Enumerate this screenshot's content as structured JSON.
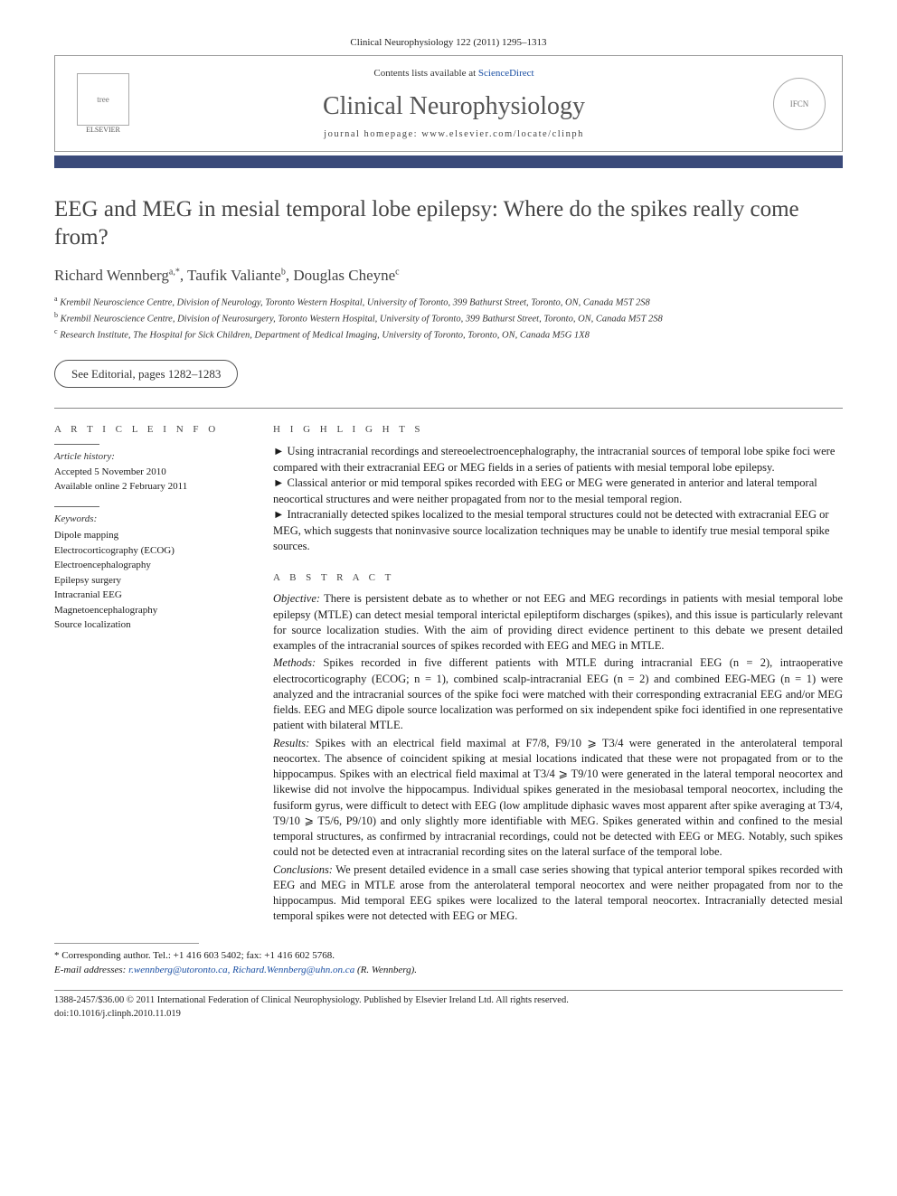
{
  "citation": "Clinical Neurophysiology 122 (2011) 1295–1313",
  "header": {
    "contents_prefix": "Contents lists available at ",
    "contents_link": "ScienceDirect",
    "journal_name": "Clinical Neurophysiology",
    "homepage_prefix": "journal homepage: ",
    "homepage_url": "www.elsevier.com/locate/clinph",
    "publisher_label": "ELSEVIER",
    "publisher_logo_alt": "tree",
    "ifcn_logo_alt": "IFCN"
  },
  "title": "EEG and MEG in mesial temporal lobe epilepsy: Where do the spikes really come from?",
  "authors_html": "Richard Wennberg",
  "authors": [
    {
      "name": "Richard Wennberg",
      "sup": "a,*"
    },
    {
      "name": "Taufik Valiante",
      "sup": "b"
    },
    {
      "name": "Douglas Cheyne",
      "sup": "c"
    }
  ],
  "affiliations": [
    {
      "sup": "a",
      "text": "Krembil Neuroscience Centre, Division of Neurology, Toronto Western Hospital, University of Toronto, 399 Bathurst Street, Toronto, ON, Canada M5T 2S8"
    },
    {
      "sup": "b",
      "text": "Krembil Neuroscience Centre, Division of Neurosurgery, Toronto Western Hospital, University of Toronto, 399 Bathurst Street, Toronto, ON, Canada M5T 2S8"
    },
    {
      "sup": "c",
      "text": "Research Institute, The Hospital for Sick Children, Department of Medical Imaging, University of Toronto, Toronto, ON, Canada M5G 1X8"
    }
  ],
  "editorial_link": "See Editorial, pages 1282–1283",
  "article_info": {
    "head": "A R T I C L E   I N F O",
    "history_label": "Article history:",
    "accepted": "Accepted 5 November 2010",
    "online": "Available online 2 February 2011",
    "keywords_label": "Keywords:",
    "keywords": [
      "Dipole mapping",
      "Electrocorticography (ECOG)",
      "Electroencephalography",
      "Epilepsy surgery",
      "Intracranial EEG",
      "Magnetoencephalography",
      "Source localization"
    ]
  },
  "highlights": {
    "head": "H I G H L I G H T S",
    "items": [
      "Using intracranial recordings and stereoelectroencephalography, the intracranial sources of temporal lobe spike foci were compared with their extracranial EEG or MEG fields in a series of patients with mesial temporal lobe epilepsy.",
      "Classical anterior or mid temporal spikes recorded with EEG or MEG were generated in anterior and lateral temporal neocortical structures and were neither propagated from nor to the mesial temporal region.",
      "Intracranially detected spikes localized to the mesial temporal structures could not be detected with extracranial EEG or MEG, which suggests that noninvasive source localization techniques may be unable to identify true mesial temporal spike sources."
    ]
  },
  "abstract": {
    "head": "A B S T R A C T",
    "objective_label": "Objective:",
    "objective": "There is persistent debate as to whether or not EEG and MEG recordings in patients with mesial temporal lobe epilepsy (MTLE) can detect mesial temporal interictal epileptiform discharges (spikes), and this issue is particularly relevant for source localization studies. With the aim of providing direct evidence pertinent to this debate we present detailed examples of the intracranial sources of spikes recorded with EEG and MEG in MTLE.",
    "methods_label": "Methods:",
    "methods": "Spikes recorded in five different patients with MTLE during intracranial EEG (n = 2), intraoperative electrocorticography (ECOG; n = 1), combined scalp-intracranial EEG (n = 2) and combined EEG-MEG (n = 1) were analyzed and the intracranial sources of the spike foci were matched with their corresponding extracranial EEG and/or MEG fields. EEG and MEG dipole source localization was performed on six independent spike foci identified in one representative patient with bilateral MTLE.",
    "results_label": "Results:",
    "results": "Spikes with an electrical field maximal at F7/8, F9/10 ⩾ T3/4 were generated in the anterolateral temporal neocortex. The absence of coincident spiking at mesial locations indicated that these were not propagated from or to the hippocampus. Spikes with an electrical field maximal at T3/4 ⩾ T9/10 were generated in the lateral temporal neocortex and likewise did not involve the hippocampus. Individual spikes generated in the mesiobasal temporal neocortex, including the fusiform gyrus, were difficult to detect with EEG (low amplitude diphasic waves most apparent after spike averaging at T3/4, T9/10 ⩾ T5/6, P9/10) and only slightly more identifiable with MEG. Spikes generated within and confined to the mesial temporal structures, as confirmed by intracranial recordings, could not be detected with EEG or MEG. Notably, such spikes could not be detected even at intracranial recording sites on the lateral surface of the temporal lobe.",
    "conclusions_label": "Conclusions:",
    "conclusions": "We present detailed evidence in a small case series showing that typical anterior temporal spikes recorded with EEG and MEG in MTLE arose from the anterolateral temporal neocortex and were neither propagated from nor to the hippocampus. Mid temporal EEG spikes were localized to the lateral temporal neocortex. Intracranially detected mesial temporal spikes were not detected with EEG or MEG."
  },
  "correspondence": {
    "marker": "* ",
    "text": "Corresponding author. Tel.: +1 416 603 5402; fax: +1 416 602 5768.",
    "email_label": "E-mail addresses: ",
    "emails": "r.wennberg@utoronto.ca, Richard.Wennberg@uhn.on.ca",
    "email_suffix": " (R. Wennberg)."
  },
  "footer": {
    "issn": "1388-2457/$36.00 © 2011 International Federation of Clinical Neurophysiology. Published by Elsevier Ireland Ltd. All rights reserved.",
    "doi": "doi:10.1016/j.clinph.2010.11.019"
  },
  "colors": {
    "bar": "#3a4a7a",
    "link": "#1a4fa3",
    "title": "#444444",
    "text": "#1a1a1a"
  }
}
